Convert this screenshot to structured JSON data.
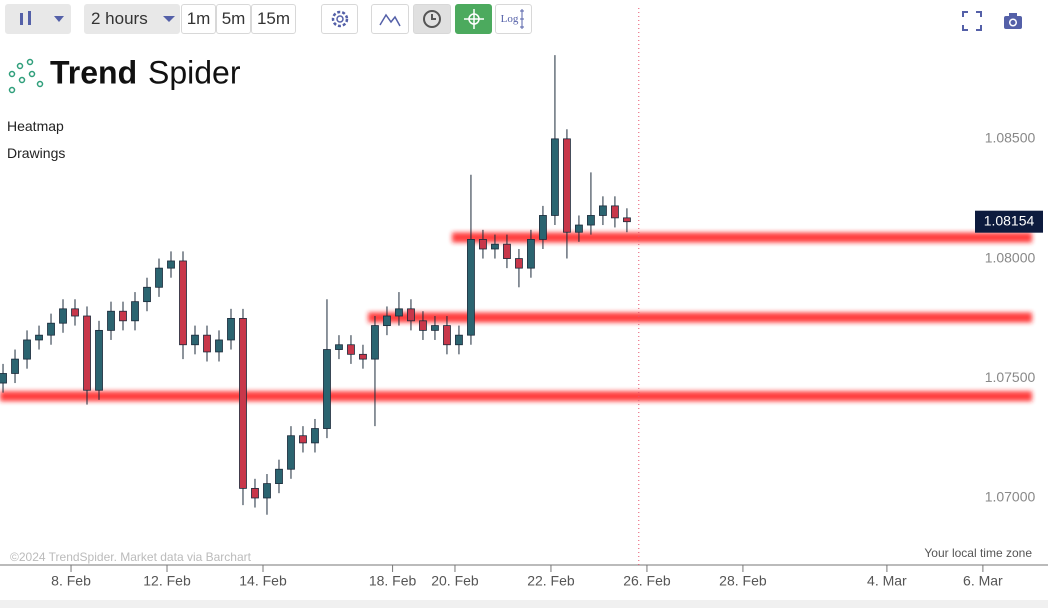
{
  "toolbar": {
    "interval": "2 hours",
    "quick_intervals": [
      "1m",
      "5m",
      "15m"
    ],
    "log_button": "Log"
  },
  "logo": {
    "bold": "Trend",
    "regular": "Spider"
  },
  "panels": [
    "Heatmap",
    "Drawings"
  ],
  "footer": {
    "copyright": "©2024 TrendSpider. Market data via Barchart",
    "timezone": "Your local time zone"
  },
  "chart_data": {
    "type": "candlestick",
    "x": [
      -1.417,
      -1.167,
      -0.917,
      -0.667,
      -0.417,
      -0.167,
      0.083,
      0.333,
      0.583,
      0.833,
      1.083,
      1.333,
      1.583,
      1.833,
      2.083,
      2.333,
      2.583,
      2.833,
      3.083,
      3.333,
      3.583,
      3.833,
      4.083,
      4.333,
      4.583,
      4.833,
      5.083,
      5.333,
      5.583,
      5.833,
      6.083,
      6.333,
      6.583,
      6.833,
      7.083,
      7.333,
      7.583,
      7.833,
      8.083,
      8.333,
      8.583,
      8.833,
      9.083,
      9.333,
      9.583,
      9.833,
      10.083,
      10.333,
      10.583,
      10.833,
      11.083,
      11.333,
      11.583
    ],
    "open": [
      1.0748,
      1.0752,
      1.0758,
      1.0766,
      1.0768,
      1.0773,
      1.0779,
      1.0776,
      1.0745,
      1.077,
      1.0778,
      1.0774,
      1.0782,
      1.0788,
      1.0796,
      1.0799,
      1.0764,
      1.0768,
      1.0761,
      1.0766,
      1.0775,
      1.0704,
      1.07,
      1.0706,
      1.0712,
      1.0726,
      1.0723,
      1.0729,
      1.0762,
      1.0764,
      1.076,
      1.0758,
      1.0772,
      1.0776,
      1.0779,
      1.0774,
      1.077,
      1.0772,
      1.0764,
      1.0768,
      1.0808,
      1.0804,
      1.0806,
      1.08,
      1.0796,
      1.0808,
      1.0818,
      1.085,
      1.0811,
      1.0814,
      1.0818,
      1.0822,
      1.0817
    ],
    "high": [
      1.0756,
      1.0762,
      1.077,
      1.0772,
      1.0777,
      1.0783,
      1.0783,
      1.078,
      1.0774,
      1.0782,
      1.0782,
      1.0786,
      1.0792,
      1.08,
      1.0803,
      1.0803,
      1.0772,
      1.0772,
      1.077,
      1.0779,
      1.0779,
      1.0708,
      1.071,
      1.0716,
      1.073,
      1.073,
      1.0733,
      1.0783,
      1.0768,
      1.0768,
      1.0764,
      1.0776,
      1.078,
      1.0786,
      1.0783,
      1.0778,
      1.0776,
      1.0776,
      1.0772,
      1.0835,
      1.0812,
      1.081,
      1.081,
      1.0804,
      1.0812,
      1.0822,
      1.0885,
      1.0854,
      1.0818,
      1.0836,
      1.0826,
      1.0826,
      1.0821
    ],
    "low": [
      1.0744,
      1.0748,
      1.0754,
      1.0762,
      1.0764,
      1.0769,
      1.0772,
      1.0739,
      1.0741,
      1.0766,
      1.077,
      1.077,
      1.0778,
      1.0784,
      1.0792,
      1.0758,
      1.076,
      1.0757,
      1.0757,
      1.0762,
      1.0697,
      1.0696,
      1.0693,
      1.0702,
      1.0708,
      1.0719,
      1.0719,
      1.0725,
      1.0758,
      1.0756,
      1.0754,
      1.073,
      1.0768,
      1.0772,
      1.077,
      1.0766,
      1.0766,
      1.076,
      1.076,
      1.0764,
      1.08,
      1.08,
      1.0796,
      1.0788,
      1.0792,
      1.0804,
      1.0814,
      1.08,
      1.0807,
      1.081,
      1.0814,
      1.0813,
      1.0811
    ],
    "close": [
      1.0752,
      1.0758,
      1.0766,
      1.0768,
      1.0773,
      1.0779,
      1.0776,
      1.0745,
      1.077,
      1.0778,
      1.0774,
      1.0782,
      1.0788,
      1.0796,
      1.0799,
      1.0764,
      1.0768,
      1.0761,
      1.0766,
      1.0775,
      1.0704,
      1.07,
      1.0706,
      1.0712,
      1.0726,
      1.0723,
      1.0729,
      1.0762,
      1.0764,
      1.076,
      1.0758,
      1.0772,
      1.0776,
      1.0779,
      1.0774,
      1.077,
      1.0772,
      1.0764,
      1.0768,
      1.0808,
      1.0804,
      1.0806,
      1.08,
      1.0796,
      1.0808,
      1.0818,
      1.085,
      1.0811,
      1.0814,
      1.0818,
      1.0822,
      1.0817,
      1.08154
    ],
    "up_color": "#2b6470",
    "down_color": "#c8374a",
    "xlim": [
      -1.48,
      20.19
    ],
    "xticks": [
      {
        "value": 0,
        "label": "8. Feb"
      },
      {
        "value": 2,
        "label": "12. Feb"
      },
      {
        "value": 4,
        "label": "14. Feb"
      },
      {
        "value": 6.7,
        "label": "18. Feb"
      },
      {
        "value": 8,
        "label": "20. Feb"
      },
      {
        "value": 10,
        "label": "22. Feb"
      },
      {
        "value": 12,
        "label": "26. Feb"
      },
      {
        "value": 14,
        "label": "28. Feb"
      },
      {
        "value": 17,
        "label": "4. Mar"
      },
      {
        "value": 19,
        "label": "6. Mar"
      }
    ],
    "ylim": [
      1.0672,
      1.0908
    ],
    "yticks": [
      {
        "value": 1.085,
        "label": "1.08500"
      },
      {
        "value": 1.08,
        "label": "1.08000"
      },
      {
        "value": 1.075,
        "label": "1.07500"
      },
      {
        "value": 1.07,
        "label": "1.07000"
      }
    ],
    "last_price": 1.08154,
    "heatmap_color": "#ff1a1a",
    "heatmap_levels": [
      {
        "price": 1.08088,
        "start": 7.94
      },
      {
        "price": 1.07754,
        "start": 6.19
      },
      {
        "price": 1.07425,
        "start": -1.48
      }
    ],
    "time_line_x": 11.83
  }
}
